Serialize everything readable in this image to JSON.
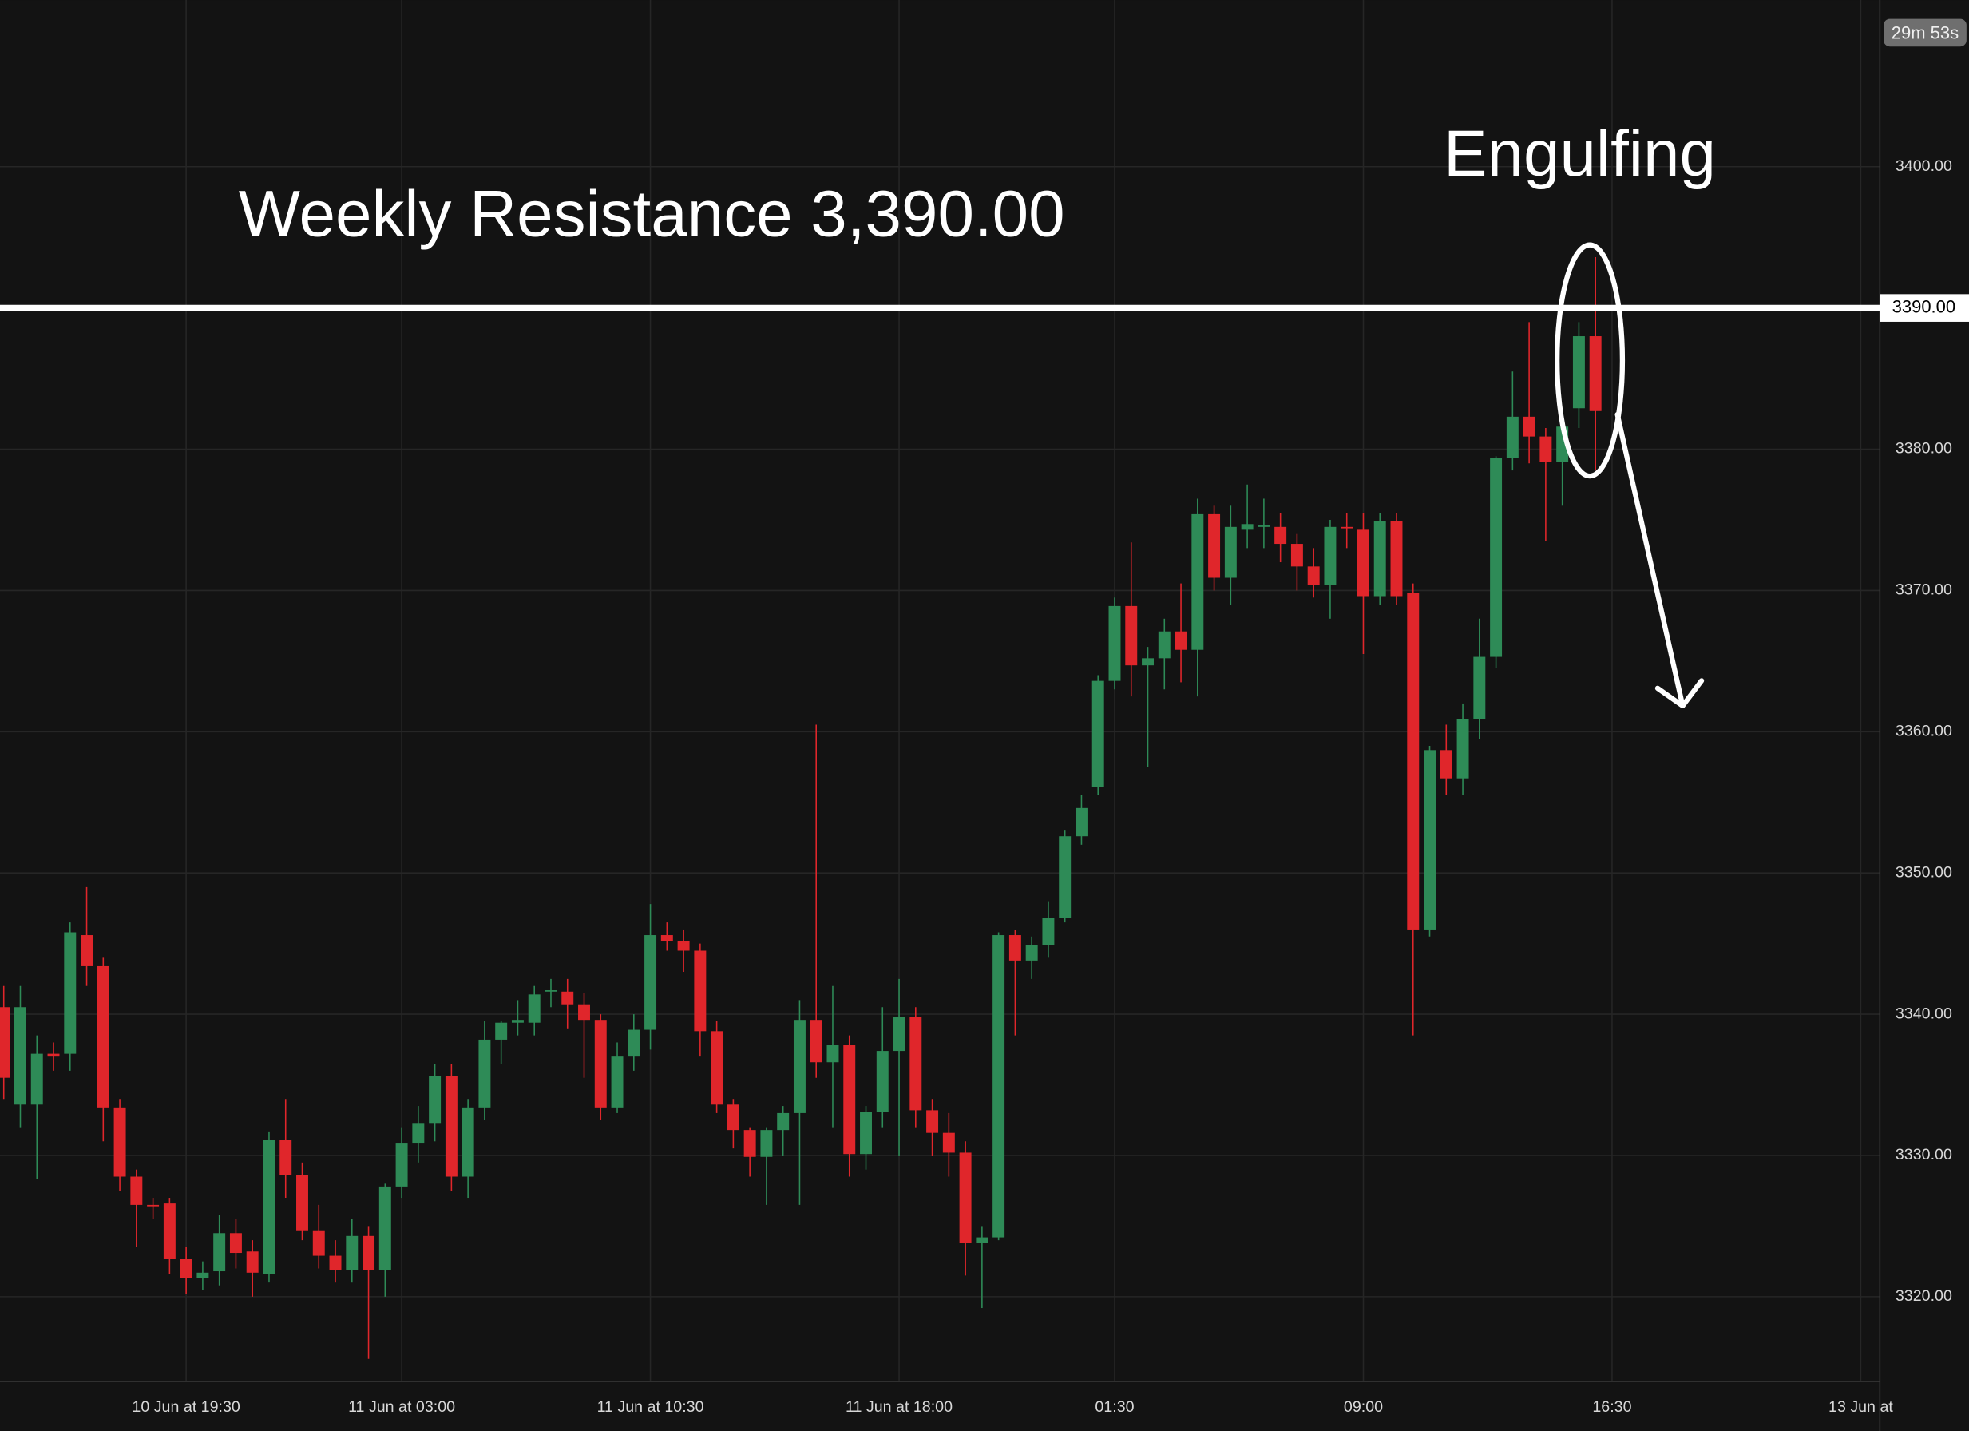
{
  "chart_data": {
    "type": "candlestick",
    "annotations": [
      "Weekly Resistance 3,390.00",
      "Engulfing"
    ],
    "countdown": "29m 53s",
    "hline": {
      "value": 3390,
      "label": "3390.00"
    },
    "up_color": "#2e8b57",
    "down_color": "#e0262b",
    "grid": true,
    "ylim": [
      3314.0,
      3411.8
    ],
    "yticks": [
      {
        "value": 3320,
        "label": "3320.00"
      },
      {
        "value": 3330,
        "label": "3330.00"
      },
      {
        "value": 3340,
        "label": "3340.00"
      },
      {
        "value": 3350,
        "label": "3350.00"
      },
      {
        "value": 3360,
        "label": "3360.00"
      },
      {
        "value": 3370,
        "label": "3370.00"
      },
      {
        "value": 3380,
        "label": "3380.00"
      },
      {
        "value": 3390,
        "label": "3390.00"
      },
      {
        "value": 3400,
        "label": "3400.00"
      }
    ],
    "categories": [
      null,
      null,
      null,
      null,
      null,
      null,
      null,
      null,
      null,
      null,
      null,
      "10 Jun at 19:30",
      null,
      null,
      null,
      null,
      null,
      null,
      null,
      null,
      null,
      null,
      null,
      null,
      "11 Jun at 03:00",
      null,
      null,
      null,
      null,
      null,
      null,
      null,
      null,
      null,
      null,
      null,
      null,
      null,
      null,
      "11 Jun at 10:30",
      null,
      null,
      null,
      null,
      null,
      null,
      null,
      null,
      null,
      null,
      null,
      null,
      null,
      null,
      "11 Jun at 18:00",
      null,
      null,
      null,
      null,
      null,
      null,
      null,
      null,
      null,
      null,
      null,
      null,
      "01:30",
      null,
      null,
      null,
      null,
      null,
      null,
      null,
      null,
      null,
      null,
      null,
      null,
      null,
      null,
      "09:00",
      null,
      null,
      null,
      null,
      null,
      null,
      null,
      null,
      null,
      null,
      null,
      null,
      null,
      null,
      "16:30",
      null,
      null,
      null,
      null,
      null,
      null,
      null,
      null,
      null,
      null,
      null,
      null,
      null,
      null,
      "13 Jun at",
      null
    ],
    "open": [
      3340.5,
      3333.6,
      3333.6,
      3337.2,
      3337.2,
      3345.6,
      3343.4,
      3333.4,
      3328.5,
      3326.5,
      3326.6,
      3322.7,
      3321.3,
      3321.8,
      3324.5,
      3323.2,
      3321.6,
      3331.1,
      3328.6,
      3324.7,
      3322.9,
      3321.9,
      3324.3,
      3321.9,
      3327.8,
      3330.9,
      3332.3,
      3335.6,
      3328.5,
      3333.4,
      3338.2,
      3339.4,
      3339.4,
      3341.6,
      3341.6,
      3340.7,
      3339.6,
      3333.4,
      3337,
      3338.9,
      3345.6,
      3345.2,
      3344.5,
      3338.8,
      3333.6,
      3331.8,
      3329.9,
      3331.8,
      3333,
      3339.6,
      3336.6,
      3337.8,
      3330.1,
      3333.1,
      3337.4,
      3339.8,
      3333.2,
      3331.6,
      3330.2,
      3323.8,
      3324.2,
      3345.6,
      3343.8,
      3344.9,
      3346.8,
      3352.6,
      3356.1,
      3363.6,
      3368.9,
      3364.7,
      3365.2,
      3367.1,
      3365.8,
      3375.4,
      3370.9,
      3374.3,
      3374.5,
      3374.5,
      3373.3,
      3371.7,
      3370.4,
      3374.5,
      3374.3,
      3369.6,
      3374.9,
      3369.8,
      3346,
      3358.7,
      3356.7,
      3360.9,
      3365.3,
      3379.4,
      3382.3,
      3380.9,
      3379.1,
      3382.9,
      3388,
      null,
      null,
      null,
      null,
      null,
      null,
      null,
      null,
      null,
      null,
      null,
      null,
      null,
      null,
      null,
      null,
      null
    ],
    "high": [
      3342,
      3342,
      3338.5,
      3338,
      3346.5,
      3349,
      3344,
      3334,
      3329,
      3327,
      3327,
      3323.5,
      3322.5,
      3325.8,
      3325.5,
      3324,
      3331.7,
      3334,
      3329.5,
      3326.5,
      3324,
      3325.5,
      3325,
      3328,
      3332,
      3333.5,
      3336.5,
      3336.5,
      3334,
      3339.5,
      3339.5,
      3341,
      3342,
      3342.5,
      3342.5,
      3341.5,
      3340,
      3338,
      3340,
      3347.8,
      3346.5,
      3346,
      3345,
      3339.5,
      3334,
      3332,
      3332,
      3333.5,
      3341,
      3360.5,
      3342,
      3338.5,
      3333.5,
      3340.5,
      3342.5,
      3340.5,
      3334,
      3333,
      3331,
      3325,
      3345.8,
      3346,
      3345.5,
      3348,
      3353,
      3355.5,
      3364,
      3369.5,
      3373.4,
      3366,
      3368,
      3370.5,
      3376.5,
      3376,
      3376,
      3377.5,
      3376.5,
      3375.5,
      3374,
      3373,
      3375,
      3375.5,
      3375.5,
      3375.5,
      3375.5,
      3370.5,
      3359,
      3360.5,
      3362,
      3368,
      3379.5,
      3385.5,
      3389,
      3381.5,
      3382,
      3389,
      3393.6,
      null,
      null,
      null,
      null,
      null,
      null,
      null,
      null,
      null,
      null,
      null,
      null,
      null,
      null,
      null,
      null,
      null
    ],
    "low": [
      3334,
      3332,
      3328.3,
      3336,
      3336,
      3342,
      3331,
      3327.5,
      3323.5,
      3325.5,
      3321.6,
      3320.2,
      3320.5,
      3320.8,
      3322,
      3320,
      3321,
      3327,
      3324,
      3322,
      3321,
      3321,
      3315.6,
      3320,
      3327,
      3329.5,
      3331,
      3327.5,
      3327,
      3332.5,
      3336.5,
      3338.5,
      3338.5,
      3340.5,
      3339,
      3335.5,
      3332.5,
      3333,
      3336,
      3337.5,
      3344.5,
      3343,
      3337,
      3333,
      3330.5,
      3328.5,
      3326.5,
      3330,
      3326.5,
      3335.5,
      3332,
      3328.5,
      3329,
      3332,
      3330,
      3332,
      3330,
      3328.5,
      3321.5,
      3319.2,
      3324,
      3338.5,
      3342.5,
      3344,
      3346.5,
      3352,
      3355.5,
      3363,
      3362.5,
      3357.5,
      3363,
      3363.5,
      3362.5,
      3370,
      3369,
      3373,
      3373,
      3372,
      3370,
      3369.5,
      3368,
      3373,
      3365.5,
      3369,
      3369,
      3338.5,
      3345.5,
      3355.5,
      3355.5,
      3359.5,
      3364.5,
      3378.5,
      3379,
      3373.5,
      3376,
      3381.5,
      3378.5,
      null,
      null,
      null,
      null,
      null,
      null,
      null,
      null,
      null,
      null,
      null,
      null,
      null,
      null,
      null,
      null,
      null
    ],
    "close": [
      3335.5,
      3340.5,
      3337.2,
      3337,
      3345.8,
      3343.4,
      3333.4,
      3328.5,
      3326.5,
      3326.4,
      3322.7,
      3321.3,
      3321.7,
      3324.5,
      3323.1,
      3321.7,
      3331.1,
      3328.6,
      3324.7,
      3322.9,
      3321.9,
      3324.3,
      3321.9,
      3327.8,
      3330.9,
      3332.3,
      3335.6,
      3328.5,
      3333.4,
      3338.2,
      3339.4,
      3339.6,
      3341.4,
      3341.7,
      3340.7,
      3339.6,
      3333.4,
      3337,
      3338.9,
      3345.6,
      3345.2,
      3344.5,
      3338.8,
      3333.6,
      3331.8,
      3329.9,
      3331.8,
      3333,
      3339.6,
      3336.6,
      3337.8,
      3330.1,
      3333.1,
      3337.4,
      3339.8,
      3333.2,
      3331.6,
      3330.2,
      3323.8,
      3324.2,
      3345.6,
      3343.8,
      3344.9,
      3346.8,
      3352.6,
      3354.6,
      3363.6,
      3368.9,
      3364.7,
      3365.2,
      3367.1,
      3365.8,
      3375.4,
      3370.9,
      3374.5,
      3374.7,
      3374.6,
      3373.3,
      3371.7,
      3370.4,
      3374.5,
      3374.4,
      3369.6,
      3374.9,
      3369.6,
      3346,
      3358.7,
      3356.7,
      3360.9,
      3365.3,
      3379.4,
      3382.3,
      3380.9,
      3379.1,
      3381.6,
      3388,
      3382.7,
      null,
      null,
      null,
      null,
      null,
      null,
      null,
      null,
      null,
      null,
      null,
      null,
      null,
      null,
      null,
      null,
      null
    ]
  }
}
